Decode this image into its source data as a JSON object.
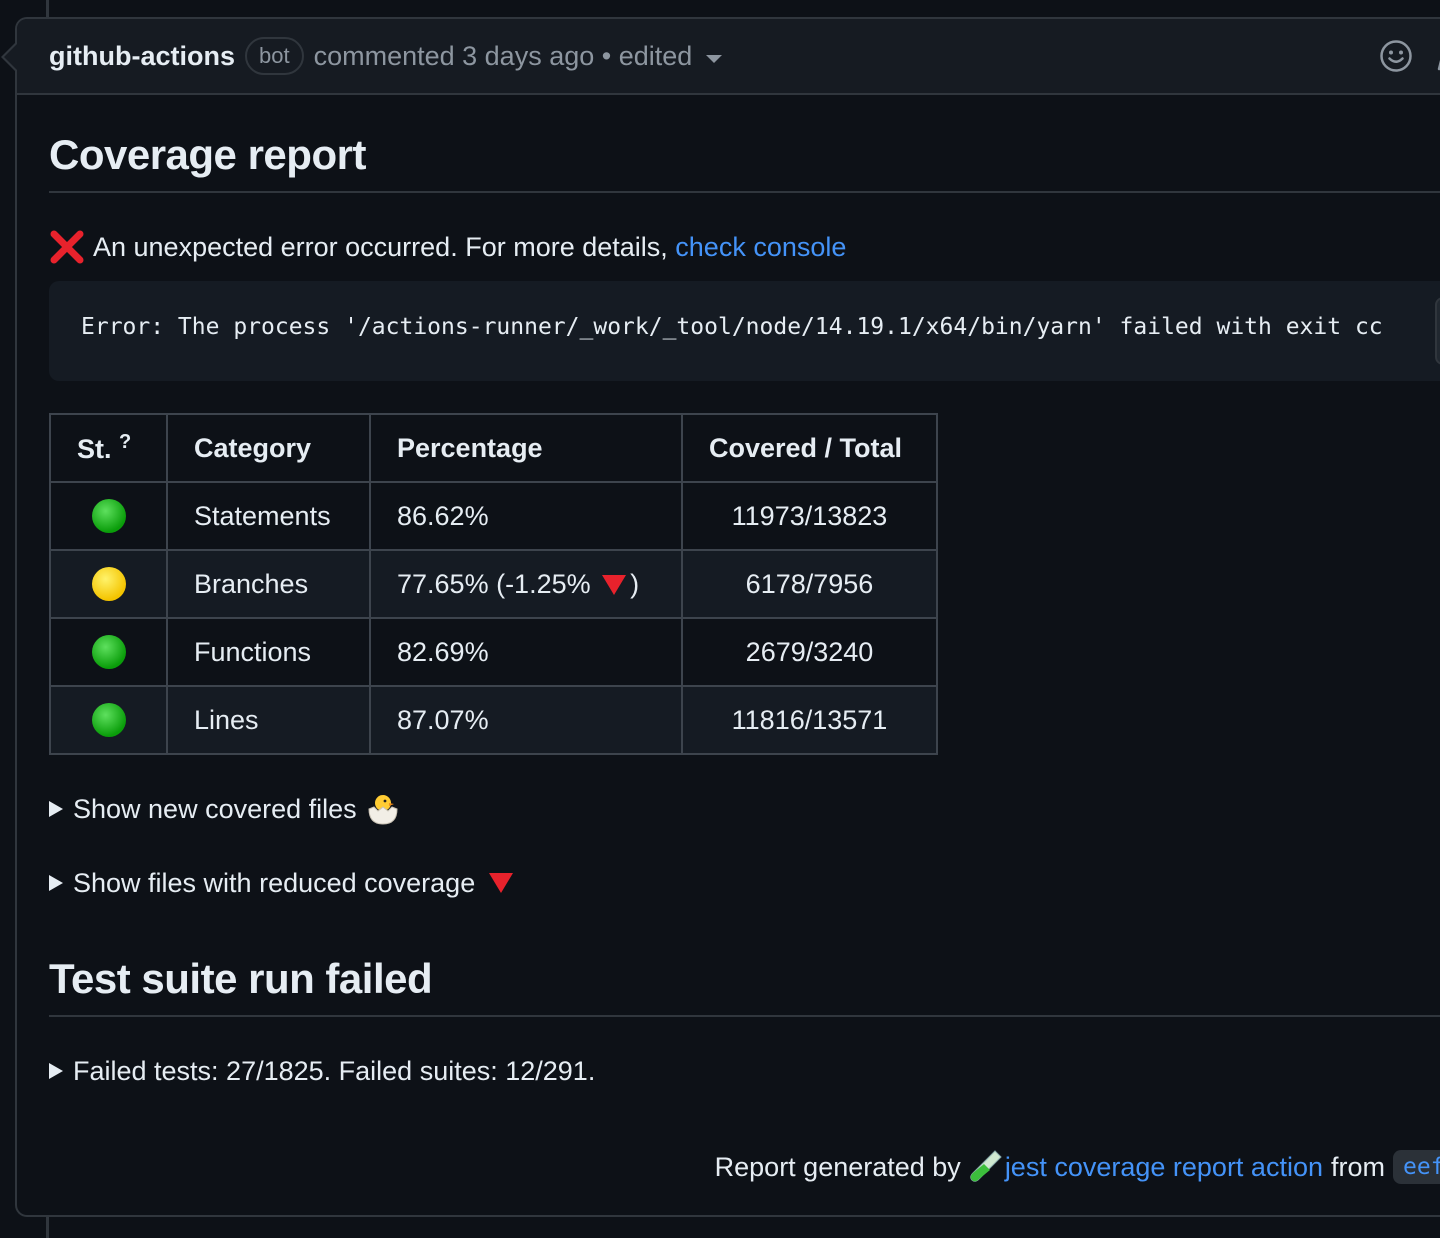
{
  "header": {
    "author": "github-actions",
    "badge": "bot",
    "meta": "commented 3 days ago • edited"
  },
  "coverage": {
    "title": "Coverage report",
    "error_text": "An unexpected error occurred. For more details,",
    "error_link": "check console",
    "code": "Error: The process '/actions-runner/_work/_tool/node/14.19.1/x64/bin/yarn' failed with exit cc"
  },
  "table": {
    "headers": [
      "St.",
      "Category",
      "Percentage",
      "Covered / Total"
    ],
    "help_mark": "?",
    "rows": [
      {
        "status": "green",
        "category": "Statements",
        "percentage": "86.62%",
        "covered": "11973/13823"
      },
      {
        "status": "yellow",
        "category": "Branches",
        "percentage": "77.65% (-1.25% ",
        "suffix": ")",
        "covered": "6178/7956"
      },
      {
        "status": "green",
        "category": "Functions",
        "percentage": "82.69%",
        "covered": "2679/3240"
      },
      {
        "status": "green",
        "category": "Lines",
        "percentage": "87.07%",
        "covered": "11816/13571"
      }
    ]
  },
  "details": {
    "new_files": "Show new covered files",
    "reduced": "Show files with reduced coverage"
  },
  "tests": {
    "title": "Test suite run failed",
    "summary": "Failed tests: 27/1825. Failed suites: 12/291."
  },
  "footer": {
    "prefix": "Report generated by",
    "link": "jest coverage report action",
    "from": "from",
    "sha": "eef"
  },
  "colors": {
    "background": "#0d1117",
    "link": "#4493f8",
    "border": "#30363d"
  },
  "icons": [
    "smiley-icon",
    "pencil-icon",
    "cross-mark-icon",
    "green-circle-icon",
    "yellow-circle-icon",
    "red-triangle-down-icon",
    "hatching-chick-icon",
    "test-tube-icon"
  ]
}
